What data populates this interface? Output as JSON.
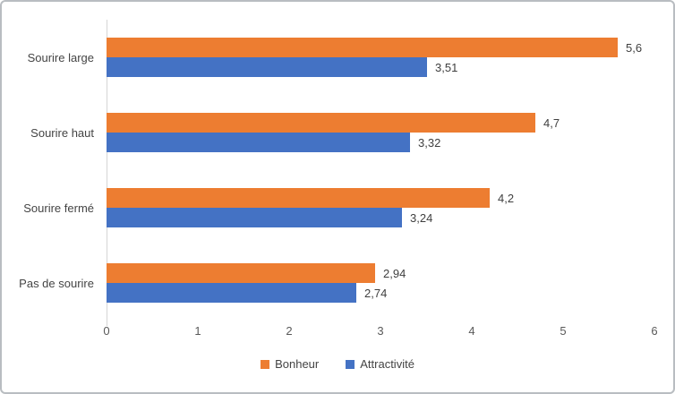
{
  "figure": {
    "background": "#ffffff",
    "border_color": "#b9bdc1",
    "axis_line_color": "#d6d6d6",
    "label_text_color": "#3f3f3f",
    "tick_text_color": "#595959"
  },
  "chart_data": {
    "type": "bar",
    "orientation": "horizontal",
    "title": "",
    "xlabel": "",
    "ylabel": "",
    "categories": [
      "Sourire large",
      "Sourire haut",
      "Sourire fermé",
      "Pas de sourire"
    ],
    "series": [
      {
        "name": "Bonheur",
        "color": "#ED7D31",
        "values": [
          5.6,
          4.7,
          4.2,
          2.94
        ],
        "value_labels": [
          "5,6",
          "4,7",
          "4,2",
          "2,94"
        ]
      },
      {
        "name": "Attractivité",
        "color": "#4472C4",
        "values": [
          3.51,
          3.32,
          3.24,
          2.74
        ],
        "value_labels": [
          "3,51",
          "3,32",
          "3,24",
          "2,74"
        ]
      }
    ],
    "xlim": [
      0,
      6
    ],
    "x_ticks": [
      "0",
      "1",
      "2",
      "3",
      "4",
      "5",
      "6"
    ],
    "grid": false,
    "legend_position": "bottom"
  }
}
